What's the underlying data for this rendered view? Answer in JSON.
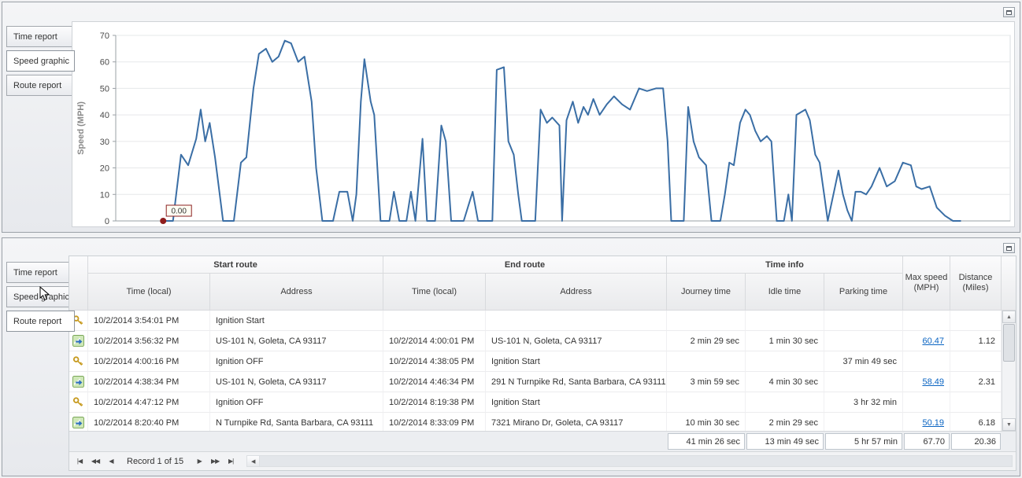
{
  "tabs": [
    "Time report",
    "Speed graphic",
    "Route report"
  ],
  "top_panel": {
    "selected_tab": "Speed graphic"
  },
  "bottom_panel": {
    "selected_tab": "Route report"
  },
  "colors": {
    "chart_line": "#3a6ea5",
    "link": "#0a64c2",
    "annotation_dot": "#8f1d1d"
  },
  "chart_data": {
    "type": "line",
    "title": "",
    "xlabel": "",
    "ylabel": "Speed (MPH)",
    "ylim": [
      0,
      70
    ],
    "yticks": [
      0,
      10,
      20,
      30,
      40,
      50,
      60,
      70
    ],
    "grid": true,
    "legend": false,
    "line_color": "#3a6ea5",
    "annotation": {
      "label": "0.00",
      "t": 5.3,
      "value": 0
    },
    "x_range": [
      0,
      100
    ],
    "points": [
      [
        5.3,
        0
      ],
      [
        6.4,
        0
      ],
      [
        7.3,
        25
      ],
      [
        8.1,
        21
      ],
      [
        9.0,
        31
      ],
      [
        9.5,
        42
      ],
      [
        10.0,
        30
      ],
      [
        10.5,
        37
      ],
      [
        11.1,
        24
      ],
      [
        12.0,
        0
      ],
      [
        13.2,
        0
      ],
      [
        14.0,
        22
      ],
      [
        14.6,
        24
      ],
      [
        15.4,
        50
      ],
      [
        16.0,
        63
      ],
      [
        16.8,
        65
      ],
      [
        17.5,
        60
      ],
      [
        18.2,
        62
      ],
      [
        18.9,
        68
      ],
      [
        19.6,
        67
      ],
      [
        20.4,
        60
      ],
      [
        21.1,
        62
      ],
      [
        21.9,
        45
      ],
      [
        22.4,
        20
      ],
      [
        23.1,
        0
      ],
      [
        24.3,
        0
      ],
      [
        25.0,
        11
      ],
      [
        25.9,
        11
      ],
      [
        26.5,
        0
      ],
      [
        26.9,
        10
      ],
      [
        27.4,
        45
      ],
      [
        27.8,
        61
      ],
      [
        28.5,
        45
      ],
      [
        28.9,
        40
      ],
      [
        29.6,
        0
      ],
      [
        30.6,
        0
      ],
      [
        31.1,
        11
      ],
      [
        31.7,
        0
      ],
      [
        32.5,
        0
      ],
      [
        33.0,
        11
      ],
      [
        33.5,
        0
      ],
      [
        34.3,
        31
      ],
      [
        34.8,
        0
      ],
      [
        35.7,
        0
      ],
      [
        36.4,
        36
      ],
      [
        36.9,
        30
      ],
      [
        37.5,
        0
      ],
      [
        38.9,
        0
      ],
      [
        39.9,
        11
      ],
      [
        40.5,
        0
      ],
      [
        42.1,
        0
      ],
      [
        42.6,
        57
      ],
      [
        43.4,
        58
      ],
      [
        43.9,
        30
      ],
      [
        44.5,
        25
      ],
      [
        45.0,
        10
      ],
      [
        45.4,
        0
      ],
      [
        46.9,
        0
      ],
      [
        47.5,
        42
      ],
      [
        48.2,
        37
      ],
      [
        48.8,
        39
      ],
      [
        49.6,
        36
      ],
      [
        49.9,
        0
      ],
      [
        50.4,
        38
      ],
      [
        51.1,
        45
      ],
      [
        51.7,
        37
      ],
      [
        52.3,
        43
      ],
      [
        52.8,
        40
      ],
      [
        53.4,
        46
      ],
      [
        54.1,
        40
      ],
      [
        54.9,
        44
      ],
      [
        55.7,
        47
      ],
      [
        56.6,
        44
      ],
      [
        57.5,
        42
      ],
      [
        58.5,
        50
      ],
      [
        59.4,
        49
      ],
      [
        60.4,
        50
      ],
      [
        61.2,
        50
      ],
      [
        61.7,
        30
      ],
      [
        62.1,
        0
      ],
      [
        63.5,
        0
      ],
      [
        64.0,
        43
      ],
      [
        64.6,
        30
      ],
      [
        65.2,
        24
      ],
      [
        66.0,
        21
      ],
      [
        66.6,
        0
      ],
      [
        67.6,
        0
      ],
      [
        68.1,
        10
      ],
      [
        68.6,
        22
      ],
      [
        69.1,
        21
      ],
      [
        69.8,
        37
      ],
      [
        70.4,
        42
      ],
      [
        70.9,
        40
      ],
      [
        71.5,
        34
      ],
      [
        72.1,
        30
      ],
      [
        72.8,
        32
      ],
      [
        73.3,
        30
      ],
      [
        73.9,
        0
      ],
      [
        74.7,
        0
      ],
      [
        75.2,
        10
      ],
      [
        75.6,
        0
      ],
      [
        76.1,
        40
      ],
      [
        76.6,
        41
      ],
      [
        77.1,
        42
      ],
      [
        77.6,
        38
      ],
      [
        78.2,
        25
      ],
      [
        78.7,
        22
      ],
      [
        79.2,
        10
      ],
      [
        79.6,
        0
      ],
      [
        80.3,
        11
      ],
      [
        80.8,
        19
      ],
      [
        81.3,
        10
      ],
      [
        81.8,
        4
      ],
      [
        82.3,
        0
      ],
      [
        82.7,
        11
      ],
      [
        83.3,
        11
      ],
      [
        83.9,
        10
      ],
      [
        84.5,
        13
      ],
      [
        85.4,
        20
      ],
      [
        86.2,
        13
      ],
      [
        87.1,
        15
      ],
      [
        88.0,
        22
      ],
      [
        88.9,
        21
      ],
      [
        89.5,
        13
      ],
      [
        90.1,
        12
      ],
      [
        91.0,
        13
      ],
      [
        91.8,
        5
      ],
      [
        92.7,
        2
      ],
      [
        93.6,
        0
      ],
      [
        94.5,
        0
      ]
    ]
  },
  "table": {
    "group_headers": {
      "start": "Start route",
      "end": "End route",
      "time": "Time info"
    },
    "column_headers": {
      "start_time": "Time (local)",
      "start_address": "Address",
      "end_time": "Time (local)",
      "end_address": "Address",
      "journey": "Journey time",
      "idle": "Idle time",
      "parking": "Parking time",
      "max_speed_line1": "Max speed",
      "max_speed_line2": "(MPH)",
      "distance_line1": "Distance",
      "distance_line2": "(Miles)"
    },
    "rows": [
      {
        "icon": "key-icon",
        "start_time": "10/2/2014 3:54:01 PM",
        "start_address": "Ignition Start",
        "end_time": "",
        "end_address": "",
        "journey": "",
        "idle": "",
        "parking": "",
        "max_speed": "",
        "distance": ""
      },
      {
        "icon": "route-icon",
        "start_time": "10/2/2014 3:56:32 PM",
        "start_address": "US-101 N, Goleta, CA 93117",
        "end_time": "10/2/2014 4:00:01 PM",
        "end_address": "US-101 N, Goleta, CA 93117",
        "journey": "2 min 29 sec",
        "idle": "1 min 30 sec",
        "parking": "",
        "max_speed": "60.47",
        "distance": "1.12"
      },
      {
        "icon": "key-icon",
        "start_time": "10/2/2014 4:00:16 PM",
        "start_address": "Ignition OFF",
        "end_time": "10/2/2014 4:38:05 PM",
        "end_address": "Ignition Start",
        "journey": "",
        "idle": "",
        "parking": "37 min 49 sec",
        "max_speed": "",
        "distance": ""
      },
      {
        "icon": "route-icon",
        "start_time": "10/2/2014 4:38:34 PM",
        "start_address": "US-101 N, Goleta, CA 93117",
        "end_time": "10/2/2014 4:46:34 PM",
        "end_address": "291 N Turnpike Rd, Santa Barbara, CA 93111",
        "journey": "3 min 59 sec",
        "idle": "4 min 30 sec",
        "parking": "",
        "max_speed": "58.49",
        "distance": "2.31"
      },
      {
        "icon": "key-icon",
        "start_time": "10/2/2014 4:47:12 PM",
        "start_address": "Ignition OFF",
        "end_time": "10/2/2014 8:19:38 PM",
        "end_address": "Ignition Start",
        "journey": "",
        "idle": "",
        "parking": "3 hr 32 min",
        "max_speed": "",
        "distance": ""
      },
      {
        "icon": "route-icon",
        "start_time": "10/2/2014 8:20:40 PM",
        "start_address": "N Turnpike Rd, Santa Barbara, CA 93111",
        "end_time": "10/2/2014 8:33:09 PM",
        "end_address": "7321 Mirano Dr, Goleta, CA 93117",
        "journey": "10 min 30 sec",
        "idle": "2 min 29 sec",
        "parking": "",
        "max_speed": "50.19",
        "distance": "6.18"
      }
    ],
    "summary": {
      "journey": "41 min 26 sec",
      "idle": "13 min 49 sec",
      "parking": "5 hr 57 min",
      "max_speed": "67.70",
      "distance": "20.36"
    },
    "navigator": {
      "record_text": "Record 1 of 15",
      "icons": {
        "first": "|◀",
        "prev_page": "◀◀",
        "prev": "◀",
        "next": "▶",
        "next_page": "▶▶",
        "last": "▶|",
        "up": "▲",
        "down": "▼",
        "left": "◀"
      }
    }
  }
}
